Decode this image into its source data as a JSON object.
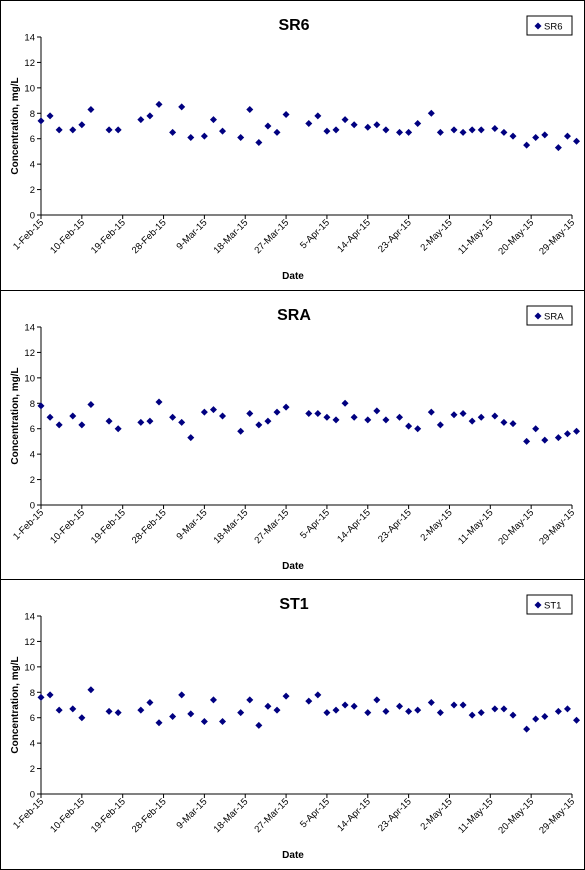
{
  "marker_color": "#000080",
  "chart_data": [
    {
      "type": "scatter",
      "title": "SR6",
      "xlabel": "Date",
      "ylabel": "Concentration, mg/L",
      "legend": [
        "SR6"
      ],
      "legend_position": "top-right",
      "ylim": [
        0,
        14
      ],
      "yticks": [
        0,
        2,
        4,
        6,
        8,
        10,
        12,
        14
      ],
      "xlim": [
        "2015-02-01",
        "2015-05-29"
      ],
      "xtick_labels": [
        "1-Feb-15",
        "10-Feb-15",
        "19-Feb-15",
        "28-Feb-15",
        "9-Mar-15",
        "18-Mar-15",
        "27-Mar-15",
        "5-Apr-15",
        "14-Apr-15",
        "23-Apr-15",
        "2-May-15",
        "11-May-15",
        "20-May-15",
        "29-May-15"
      ],
      "grid": false,
      "series": [
        {
          "name": "SR6",
          "x": [
            "2015-02-01",
            "2015-02-03",
            "2015-02-05",
            "2015-02-08",
            "2015-02-10",
            "2015-02-12",
            "2015-02-16",
            "2015-02-18",
            "2015-02-23",
            "2015-02-25",
            "2015-02-27",
            "2015-03-02",
            "2015-03-04",
            "2015-03-06",
            "2015-03-09",
            "2015-03-11",
            "2015-03-13",
            "2015-03-17",
            "2015-03-19",
            "2015-03-21",
            "2015-03-23",
            "2015-03-25",
            "2015-03-27",
            "2015-04-01",
            "2015-04-03",
            "2015-04-05",
            "2015-04-07",
            "2015-04-09",
            "2015-04-11",
            "2015-04-14",
            "2015-04-16",
            "2015-04-18",
            "2015-04-21",
            "2015-04-23",
            "2015-04-25",
            "2015-04-28",
            "2015-04-30",
            "2015-05-03",
            "2015-05-05",
            "2015-05-07",
            "2015-05-09",
            "2015-05-12",
            "2015-05-14",
            "2015-05-16",
            "2015-05-19",
            "2015-05-21",
            "2015-05-23",
            "2015-05-26",
            "2015-05-28",
            "2015-05-30"
          ],
          "y": [
            7.4,
            7.8,
            6.7,
            6.7,
            7.1,
            8.3,
            6.7,
            6.7,
            7.5,
            7.8,
            8.7,
            6.5,
            8.5,
            6.1,
            6.2,
            7.5,
            6.6,
            6.1,
            8.3,
            5.7,
            7.0,
            6.5,
            7.9,
            7.2,
            7.8,
            6.6,
            6.7,
            7.5,
            7.1,
            6.9,
            7.1,
            6.7,
            6.5,
            6.5,
            7.2,
            8.0,
            6.5,
            6.7,
            6.5,
            6.7,
            6.7,
            6.8,
            6.5,
            6.2,
            5.5,
            6.1,
            6.3,
            5.3,
            6.2,
            5.8
          ]
        }
      ]
    },
    {
      "type": "scatter",
      "title": "SRA",
      "xlabel": "Date",
      "ylabel": "Concentration, mg/L",
      "legend": [
        "SRA"
      ],
      "legend_position": "top-right",
      "ylim": [
        0,
        14
      ],
      "yticks": [
        0,
        2,
        4,
        6,
        8,
        10,
        12,
        14
      ],
      "xlim": [
        "2015-02-01",
        "2015-05-29"
      ],
      "xtick_labels": [
        "1-Feb-15",
        "10-Feb-15",
        "19-Feb-15",
        "28-Feb-15",
        "9-Mar-15",
        "18-Mar-15",
        "27-Mar-15",
        "5-Apr-15",
        "14-Apr-15",
        "23-Apr-15",
        "2-May-15",
        "11-May-15",
        "20-May-15",
        "29-May-15"
      ],
      "grid": false,
      "series": [
        {
          "name": "SRA",
          "x": [
            "2015-02-01",
            "2015-02-03",
            "2015-02-05",
            "2015-02-08",
            "2015-02-10",
            "2015-02-12",
            "2015-02-16",
            "2015-02-18",
            "2015-02-23",
            "2015-02-25",
            "2015-02-27",
            "2015-03-02",
            "2015-03-04",
            "2015-03-06",
            "2015-03-09",
            "2015-03-11",
            "2015-03-13",
            "2015-03-17",
            "2015-03-19",
            "2015-03-21",
            "2015-03-23",
            "2015-03-25",
            "2015-03-27",
            "2015-04-01",
            "2015-04-03",
            "2015-04-05",
            "2015-04-07",
            "2015-04-09",
            "2015-04-11",
            "2015-04-14",
            "2015-04-16",
            "2015-04-18",
            "2015-04-21",
            "2015-04-23",
            "2015-04-25",
            "2015-04-28",
            "2015-04-30",
            "2015-05-03",
            "2015-05-05",
            "2015-05-07",
            "2015-05-09",
            "2015-05-12",
            "2015-05-14",
            "2015-05-16",
            "2015-05-19",
            "2015-05-21",
            "2015-05-23",
            "2015-05-26",
            "2015-05-28",
            "2015-05-30"
          ],
          "y": [
            7.8,
            6.9,
            6.3,
            7.0,
            6.3,
            7.9,
            6.6,
            6.0,
            6.5,
            6.6,
            8.1,
            6.9,
            6.5,
            5.3,
            7.3,
            7.5,
            7.0,
            5.8,
            7.2,
            6.3,
            6.6,
            7.3,
            7.7,
            7.2,
            7.2,
            6.9,
            6.7,
            8.0,
            6.9,
            6.7,
            7.4,
            6.7,
            6.9,
            6.2,
            6.0,
            7.3,
            6.3,
            7.1,
            7.2,
            6.6,
            6.9,
            7.0,
            6.5,
            6.4,
            5.0,
            6.0,
            5.1,
            5.3,
            5.6,
            5.8
          ]
        }
      ]
    },
    {
      "type": "scatter",
      "title": "ST1",
      "xlabel": "Date",
      "ylabel": "Concentration, mg/L",
      "legend": [
        "ST1"
      ],
      "legend_position": "top-right",
      "ylim": [
        0,
        14
      ],
      "yticks": [
        0,
        2,
        4,
        6,
        8,
        10,
        12,
        14
      ],
      "xlim": [
        "2015-02-01",
        "2015-05-29"
      ],
      "xtick_labels": [
        "1-Feb-15",
        "10-Feb-15",
        "19-Feb-15",
        "28-Feb-15",
        "9-Mar-15",
        "18-Mar-15",
        "27-Mar-15",
        "5-Apr-15",
        "14-Apr-15",
        "23-Apr-15",
        "2-May-15",
        "11-May-15",
        "20-May-15",
        "29-May-15"
      ],
      "grid": false,
      "series": [
        {
          "name": "ST1",
          "x": [
            "2015-02-01",
            "2015-02-03",
            "2015-02-05",
            "2015-02-08",
            "2015-02-10",
            "2015-02-12",
            "2015-02-16",
            "2015-02-18",
            "2015-02-23",
            "2015-02-25",
            "2015-02-27",
            "2015-03-02",
            "2015-03-04",
            "2015-03-06",
            "2015-03-09",
            "2015-03-11",
            "2015-03-13",
            "2015-03-17",
            "2015-03-19",
            "2015-03-21",
            "2015-03-23",
            "2015-03-25",
            "2015-03-27",
            "2015-04-01",
            "2015-04-03",
            "2015-04-05",
            "2015-04-07",
            "2015-04-09",
            "2015-04-11",
            "2015-04-14",
            "2015-04-16",
            "2015-04-18",
            "2015-04-21",
            "2015-04-23",
            "2015-04-25",
            "2015-04-28",
            "2015-04-30",
            "2015-05-03",
            "2015-05-05",
            "2015-05-07",
            "2015-05-09",
            "2015-05-12",
            "2015-05-14",
            "2015-05-16",
            "2015-05-19",
            "2015-05-21",
            "2015-05-23",
            "2015-05-26",
            "2015-05-28",
            "2015-05-30"
          ],
          "y": [
            7.6,
            7.8,
            6.6,
            6.7,
            6.0,
            8.2,
            6.5,
            6.4,
            6.6,
            7.2,
            5.6,
            6.1,
            7.8,
            6.3,
            5.7,
            7.4,
            5.7,
            6.4,
            7.4,
            5.4,
            6.9,
            6.6,
            7.7,
            7.3,
            7.8,
            6.4,
            6.6,
            7.0,
            6.9,
            6.4,
            7.4,
            6.5,
            6.9,
            6.5,
            6.6,
            7.2,
            6.4,
            7.0,
            7.0,
            6.2,
            6.4,
            6.7,
            6.7,
            6.2,
            5.1,
            5.9,
            6.1,
            6.5,
            6.7,
            5.8
          ]
        }
      ]
    }
  ]
}
